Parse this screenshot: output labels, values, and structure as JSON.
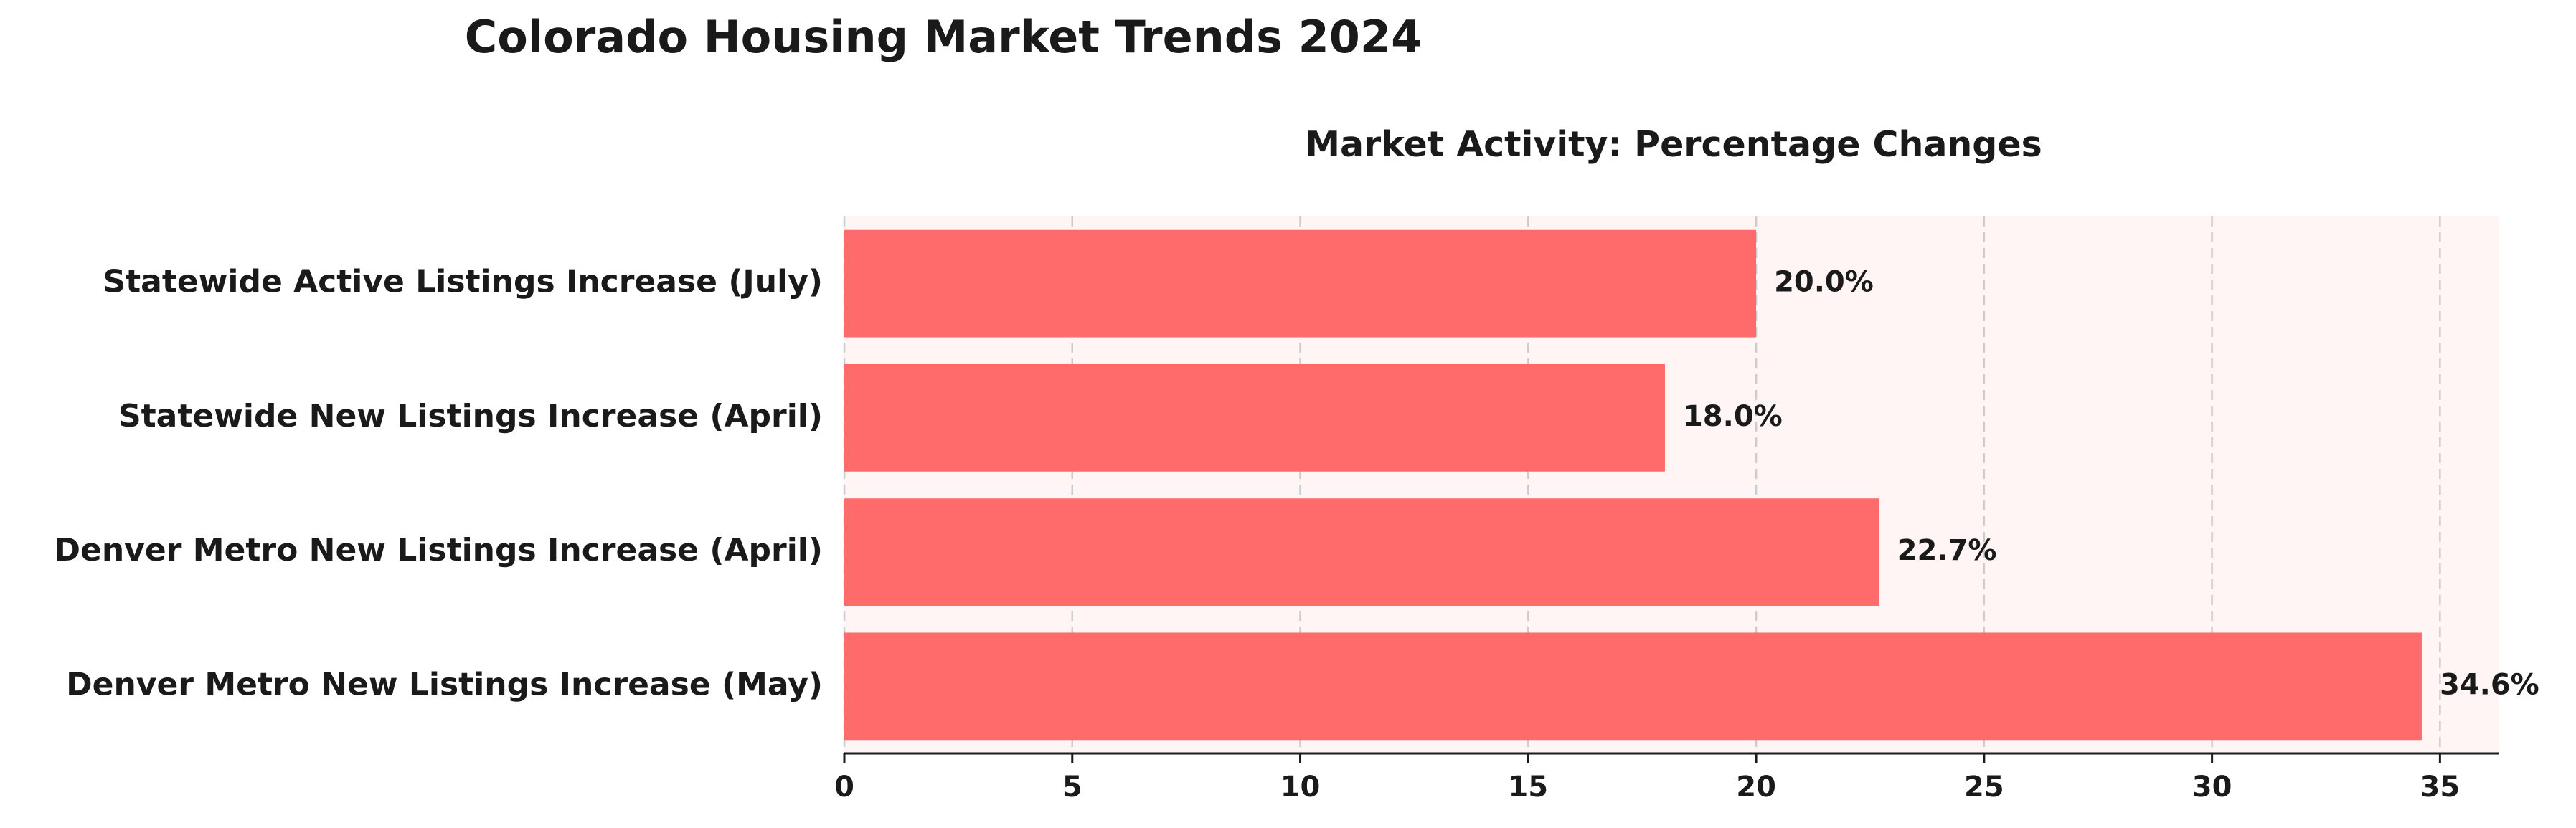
{
  "figure": {
    "suptitle": "Colorado Housing Market Trends 2024"
  },
  "colors": {
    "bar": "#ff6b6b",
    "plot_background": "#fff5f5",
    "grid": "#cccccc",
    "text": "#1a1a1a"
  },
  "chart_data": {
    "type": "bar",
    "orientation": "horizontal",
    "title": "Market Activity: Percentage Changes",
    "xlabel": "",
    "ylabel": "",
    "categories": [
      "Statewide Active Listings Increase (July)",
      "Statewide New Listings Increase (April)",
      "Denver Metro New Listings Increase (April)",
      "Denver Metro New Listings Increase (May)"
    ],
    "values": [
      20.0,
      18.0,
      22.7,
      34.6
    ],
    "value_labels": [
      "20.0%",
      "18.0%",
      "22.7%",
      "34.6%"
    ],
    "xlim": [
      0,
      36.3
    ],
    "xticks": [
      0,
      5,
      10,
      15,
      20,
      25,
      30,
      35
    ],
    "grid": "x, dashed",
    "legend": "none"
  }
}
